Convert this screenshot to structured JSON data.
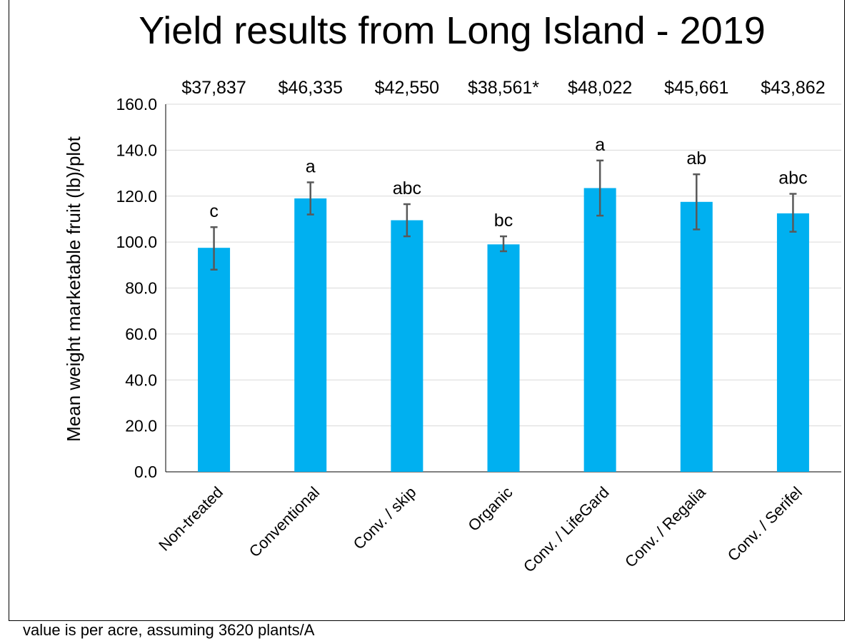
{
  "chart_data": {
    "type": "bar",
    "title": "Yield results from Long Island - 2019",
    "ylabel": "Mean weight marketable fruit (lb)/plot",
    "xlabel": "",
    "ylim": [
      0,
      160
    ],
    "yticks": [
      "0.0",
      "20.0",
      "40.0",
      "60.0",
      "80.0",
      "100.0",
      "120.0",
      "140.0",
      "160.0"
    ],
    "grid": true,
    "bar_color": "#00B0F0",
    "error_bar_color": "#595959",
    "categories": [
      "Non-treated",
      "Conventional",
      "Conv. / skip",
      "Organic",
      "Conv. / LifeGard",
      "Conv. / Regalia",
      "Conv. / Serifel"
    ],
    "values": [
      97.5,
      119.0,
      109.5,
      99.0,
      123.5,
      117.5,
      112.5
    ],
    "error_low": [
      88.0,
      112.0,
      102.5,
      96.0,
      111.5,
      105.5,
      104.5
    ],
    "error_high": [
      106.5,
      126.0,
      116.5,
      102.5,
      135.5,
      129.5,
      121.0
    ],
    "significance_letters": [
      "c",
      "a",
      "abc",
      "bc",
      "a",
      "ab",
      "abc"
    ],
    "value_per_acre": [
      "$37,837",
      "$46,335",
      "$42,550",
      "$38,561*",
      "$48,022",
      "$45,661",
      "$43,862"
    ]
  },
  "footnote": "value is per acre, assuming 3620 plants/A"
}
